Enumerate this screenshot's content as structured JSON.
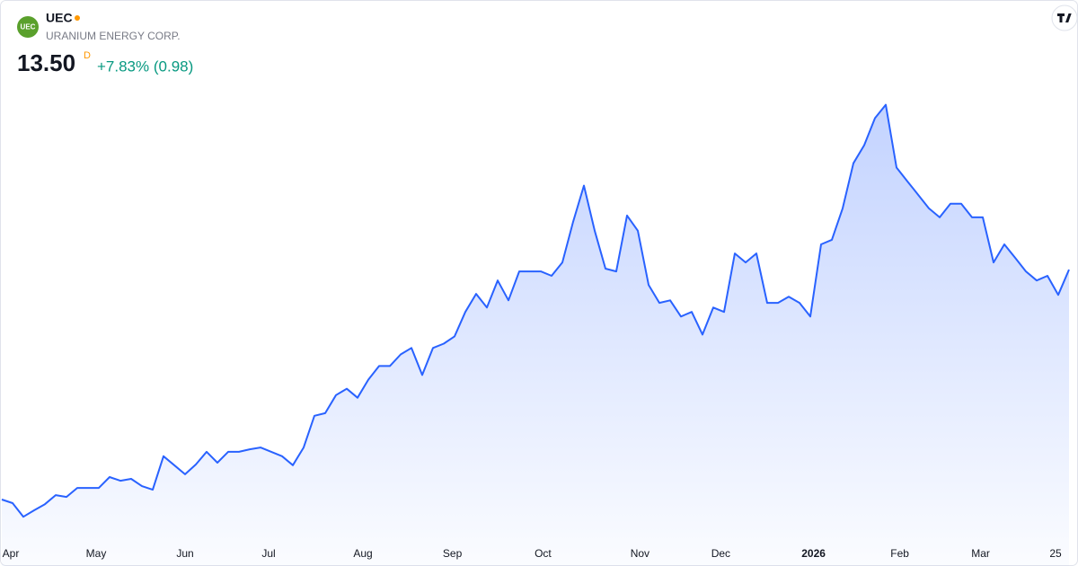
{
  "header": {
    "logo": "UEC",
    "symbol": "UEC",
    "name": "URANIUM ENERGY CORP.",
    "price": "13.50",
    "interval": "D",
    "change": "+7.83% (0.98)"
  },
  "chart_data": {
    "type": "area",
    "color": "#2962ff",
    "values": [
      4.58,
      4.44,
      3.91,
      4.16,
      4.4,
      4.75,
      4.68,
      5.03,
      5.03,
      5.03,
      5.45,
      5.31,
      5.38,
      5.1,
      4.96,
      6.26,
      5.91,
      5.56,
      5.94,
      6.43,
      6.01,
      6.43,
      6.43,
      6.53,
      6.6,
      6.43,
      6.26,
      5.91,
      6.6,
      7.83,
      7.93,
      8.63,
      8.88,
      8.53,
      9.23,
      9.76,
      9.76,
      10.21,
      10.46,
      9.41,
      10.46,
      10.63,
      10.91,
      11.86,
      12.56,
      12.03,
      13.08,
      12.31,
      13.43,
      13.43,
      13.43,
      13.26,
      13.78,
      15.36,
      16.76,
      15.01,
      13.54,
      13.43,
      15.6,
      15.01,
      12.91,
      12.21,
      12.31,
      11.68,
      11.86,
      10.98,
      12.03,
      11.86,
      14.13,
      13.78,
      14.13,
      12.21,
      12.21,
      12.45,
      12.21,
      11.68,
      14.48,
      14.66,
      15.88,
      17.63,
      18.33,
      19.38,
      19.9,
      17.46,
      16.93,
      16.41,
      15.88,
      15.53,
      16.06,
      16.06,
      15.53,
      15.53,
      13.78,
      14.48,
      13.96,
      13.43,
      13.08,
      13.26,
      12.52,
      13.5
    ],
    "xlim": [
      0,
      99
    ],
    "ylim": [
      2,
      21
    ],
    "xticks": [
      {
        "value": 0.75,
        "label": "Apr"
      },
      {
        "value": 8.75,
        "label": "May"
      },
      {
        "value": 17,
        "label": "Jun"
      },
      {
        "value": 24.75,
        "label": "Jul"
      },
      {
        "value": 33.5,
        "label": "Aug"
      },
      {
        "value": 41.8,
        "label": "Sep"
      },
      {
        "value": 50.2,
        "label": "Oct"
      },
      {
        "value": 59.2,
        "label": "Nov"
      },
      {
        "value": 66.7,
        "label": "Dec"
      },
      {
        "value": 75.3,
        "label": "2026"
      },
      {
        "value": 83.3,
        "label": "Feb"
      },
      {
        "value": 90.8,
        "label": "Mar"
      },
      {
        "value": 97.75,
        "label": "25"
      }
    ]
  }
}
